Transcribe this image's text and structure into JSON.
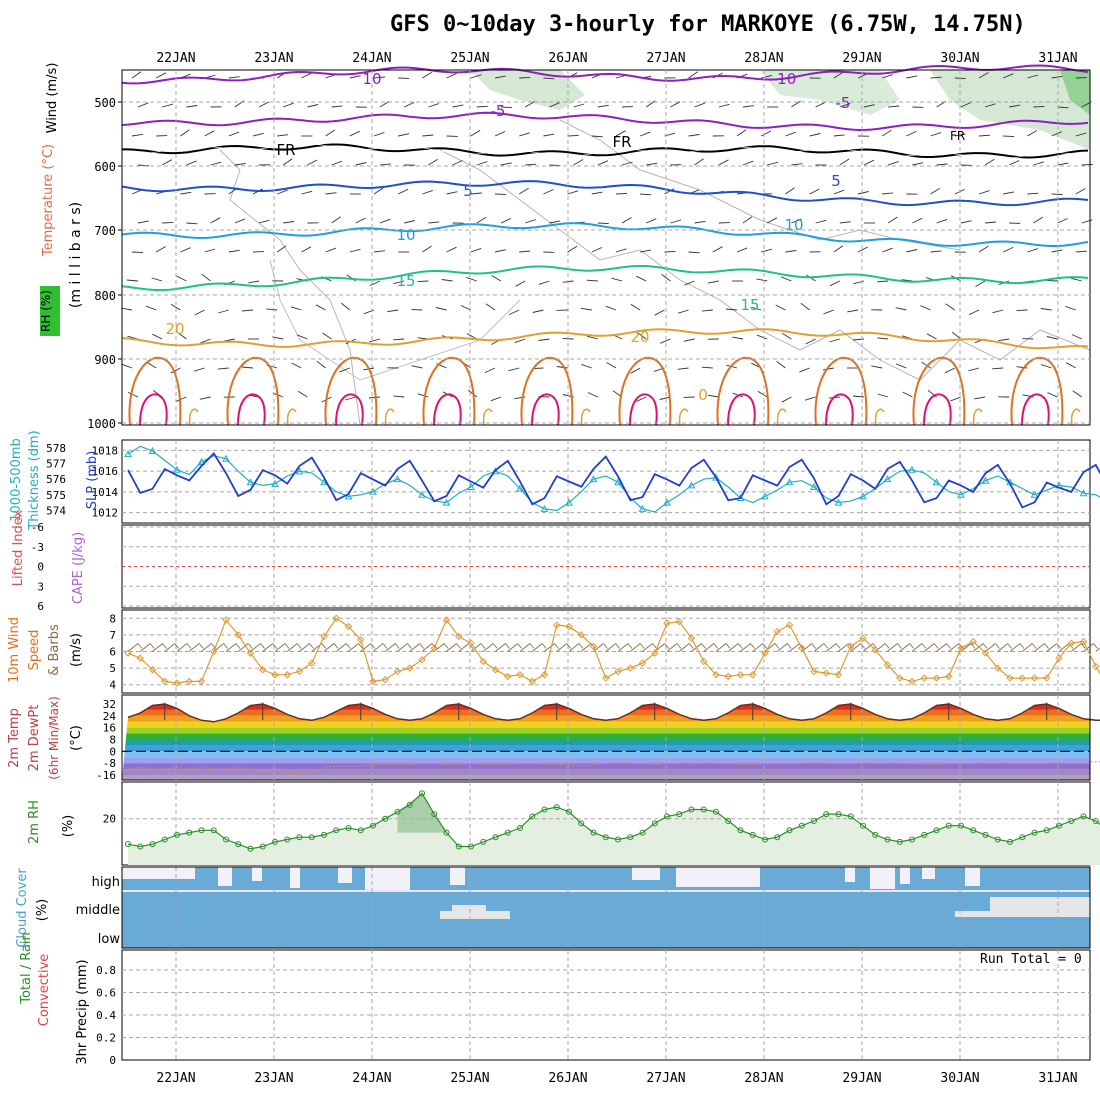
{
  "title": "GFS 0~10day 3-hourly for MARKOYE (6.75W, 14.75N)",
  "days": [
    "22JAN",
    "23JAN",
    "24JAN",
    "25JAN",
    "26JAN",
    "27JAN",
    "28JAN",
    "29JAN",
    "30JAN",
    "31JAN"
  ],
  "colors": {
    "grid": "#a8a8a8",
    "temp_cold": "#8f1fbf",
    "temp_fr": "#000000",
    "temp_5": "#1f4fcf",
    "temp_10": "#1f9fdf",
    "temp_15": "#1fbf8f",
    "temp_20": "#dfa030",
    "temp_warm": "#df7020",
    "temp_hot": "#df1070",
    "rh_shade": "#cfe6cf",
    "slp": "#1f3fcf",
    "thickness": "#1fafc0",
    "wind10": "#e09a30",
    "cloud": "#6aaad6",
    "rh2m": "#2a8f2a"
  },
  "panels": {
    "upper": {
      "ylabels": [
        "Wind (m/s)",
        "Temperature (°C)",
        "RH (%)",
        "(m i l l i b a r s)"
      ],
      "ticks": [
        "500",
        "600",
        "700",
        "800",
        "900",
        "1000"
      ],
      "contour_labels": [
        "10",
        "-5",
        "FR",
        "5",
        "10",
        "15",
        "20",
        "-10",
        "-5",
        "FR",
        "5",
        "10",
        "15",
        "20",
        "0"
      ]
    },
    "slp": {
      "ylabels": [
        "SLP (mb)",
        "1000-500mb",
        "Thickness (dm)"
      ],
      "slp_ticks": [
        "1018",
        "1016",
        "1014",
        "1012"
      ],
      "thk_ticks": [
        "578",
        "577",
        "576",
        "575",
        "574"
      ]
    },
    "li": {
      "ylabels": [
        "Lifted Index",
        "CAPE (J/kg)"
      ],
      "ticks": [
        "-6",
        "-3",
        "0",
        "3",
        "6"
      ]
    },
    "wind10": {
      "ylabels": [
        "10m Wind",
        "Speed",
        "& Barbs",
        "(m/s)"
      ],
      "ticks": [
        "8",
        "7",
        "6",
        "5",
        "4"
      ]
    },
    "temp2m": {
      "ylabels": [
        "2m Temp",
        "2m DewPt",
        "(6hr Min/Max)",
        "(°C)"
      ],
      "ticks": [
        "32",
        "24",
        "16",
        "8",
        "0",
        "-8",
        "-16"
      ]
    },
    "rh2m": {
      "ylabels": [
        "2m RH",
        "(%)"
      ],
      "ticks": [
        "20"
      ]
    },
    "cloud": {
      "ylabels": [
        "Cloud Cover",
        "(%)"
      ],
      "levels": [
        "high",
        "middle",
        "low"
      ]
    },
    "precip": {
      "ylabels": [
        "Total / Rain",
        "Convective",
        "3hr Precip (mm)"
      ],
      "ticks": [
        "0.8",
        "0.6",
        "0.4",
        "0.2",
        "0"
      ],
      "run_total": "Run Total = 0"
    }
  },
  "chart_data": [
    {
      "type": "line",
      "title": "SLP (mb)",
      "x_unit": "3-hourly steps from 21JAN 12Z",
      "series": [
        {
          "name": "SLP (mb)",
          "values": [
            1016.1,
            1013.9,
            1014.3,
            1016.2,
            1015.6,
            1015.1,
            1016.5,
            1017.7,
            1015.8,
            1013.6,
            1014.2,
            1016.1,
            1015.6,
            1014.8,
            1016.5,
            1017.3,
            1015.4,
            1013.2,
            1013.8,
            1015.8,
            1015.2,
            1014.6,
            1016.2,
            1017.0,
            1015.1,
            1013.1,
            1013.6,
            1015.6,
            1015.0,
            1014.4,
            1016.1,
            1017.0,
            1015.0,
            1012.8,
            1013.4,
            1015.5,
            1015.0,
            1014.5,
            1016.2,
            1017.4,
            1015.5,
            1013.2,
            1013.5,
            1015.7,
            1015.2,
            1014.6,
            1016.3,
            1017.1,
            1015.4,
            1013.2,
            1013.4,
            1015.6,
            1015.1,
            1014.6,
            1016.4,
            1017.1,
            1015.3,
            1012.8,
            1013.6,
            1015.7,
            1015.1,
            1014.3,
            1016.2,
            1016.9,
            1015.1,
            1013.0,
            1013.4,
            1015.1,
            1014.6,
            1014.0,
            1015.8,
            1016.6,
            1014.8,
            1012.5,
            1013.0,
            1014.9,
            1014.4,
            1014.0,
            1015.9,
            1016.6,
            1014.4,
            1012.2,
            1013.0
          ]
        },
        {
          "name": "1000-500mb Thickness (dm)",
          "values": [
            577.6,
            578.1,
            577.8,
            577.2,
            576.6,
            576.3,
            577.1,
            577.5,
            577.3,
            576.5,
            575.8,
            575.6,
            575.7,
            576.2,
            576.5,
            576.4,
            575.8,
            575.2,
            574.9,
            575.0,
            575.2,
            575.7,
            576.0,
            575.6,
            575.0,
            574.6,
            574.5,
            575.1,
            575.5,
            576.2,
            576.5,
            576.2,
            575.4,
            574.5,
            574.1,
            574.0,
            574.5,
            575.2,
            576.0,
            576.2,
            575.8,
            574.8,
            574.1,
            573.9,
            574.5,
            575.0,
            575.6,
            576.0,
            576.1,
            575.5,
            574.8,
            574.5,
            574.9,
            575.3,
            575.8,
            575.9,
            575.5,
            574.8,
            574.5,
            574.6,
            574.9,
            575.4,
            576.0,
            576.5,
            576.6,
            576.4,
            575.8,
            575.2,
            575.0,
            575.4,
            575.9,
            576.2,
            575.8,
            575.4,
            575.0,
            575.3,
            575.6,
            575.5,
            575.1,
            575.0,
            574.6,
            574.3,
            574.4
          ]
        }
      ],
      "ylim_slp": [
        1011,
        1019
      ],
      "ylim_thickness": [
        573.2,
        578.5
      ]
    },
    {
      "type": "line",
      "title": "10m Wind Speed (m/s)",
      "values": [
        5.9,
        5.6,
        4.9,
        4.2,
        4.1,
        4.2,
        4.2,
        6.0,
        7.9,
        7.0,
        5.9,
        4.9,
        4.6,
        4.6,
        4.8,
        5.3,
        6.9,
        8.0,
        7.5,
        6.7,
        4.2,
        4.3,
        4.8,
        5.0,
        5.5,
        6.2,
        7.9,
        6.9,
        6.5,
        5.4,
        4.9,
        4.5,
        4.6,
        4.2,
        4.6,
        7.6,
        7.5,
        7.0,
        6.3,
        4.4,
        4.8,
        5.0,
        5.3,
        5.9,
        7.7,
        7.8,
        6.8,
        5.4,
        4.6,
        4.5,
        4.6,
        4.6,
        5.9,
        7.2,
        7.6,
        6.2,
        4.8,
        4.7,
        4.6,
        6.3,
        6.8,
        6.1,
        5.2,
        4.4,
        4.2,
        4.4,
        4.4,
        4.5,
        6.2,
        6.6,
        5.9,
        5.0,
        4.4,
        4.4,
        4.4,
        4.4,
        5.6,
        6.5,
        6.6,
        5.1,
        3.9,
        4.4,
        4.5
      ],
      "ylim": [
        3.5,
        8.5
      ]
    },
    {
      "type": "area",
      "title": "2m Temp (°C)",
      "series": [
        {
          "name": "2m Temp",
          "values": [
            23,
            26,
            31,
            32,
            29,
            24,
            21,
            20,
            22,
            26,
            31,
            32,
            29,
            25,
            22,
            21,
            23,
            27,
            31,
            32,
            29,
            25,
            22,
            21,
            22,
            26,
            31,
            32,
            29,
            25,
            22,
            21,
            22,
            26,
            31,
            32,
            29,
            25,
            22,
            21,
            22,
            26,
            31,
            32,
            29,
            25,
            22,
            21,
            22,
            26,
            31,
            32,
            29,
            25,
            22,
            21,
            22,
            26,
            31,
            32,
            29,
            25,
            22,
            21,
            22,
            26,
            31,
            32,
            29,
            25,
            22,
            21,
            22,
            26,
            31,
            32,
            29,
            25,
            22,
            21,
            21,
            20,
            20
          ]
        },
        {
          "name": "2m DewPt",
          "values": [
            -12,
            -11,
            -12,
            -12,
            -11,
            -12,
            -11,
            -12,
            -12,
            -11,
            -12,
            -13,
            -12,
            -15,
            -16,
            -14,
            -11,
            -10,
            -10,
            -10,
            -9,
            -9,
            -9,
            -9,
            -8,
            -8,
            -9,
            -9,
            -8,
            -9,
            -9,
            -9,
            -8,
            -8,
            -9,
            -9,
            -9,
            -10,
            -9,
            -8,
            -7,
            -8,
            -8,
            -9,
            -8,
            -8,
            -7,
            -7,
            -8,
            -8,
            -9,
            -9,
            -8,
            -8,
            -8,
            -8,
            -7,
            -8,
            -8,
            -8,
            -8,
            -7,
            -7,
            -8,
            -8,
            -9,
            -9,
            -8,
            -8,
            -8,
            -7,
            -7,
            -8,
            -8,
            -8,
            -8,
            -7,
            -7,
            -7,
            -7,
            -7,
            -8,
            -8
          ]
        }
      ],
      "ylim": [
        -20,
        36
      ]
    },
    {
      "type": "line",
      "title": "2m RH (%)",
      "values": [
        9,
        8,
        9,
        11,
        13,
        14,
        15,
        15,
        11,
        9,
        7,
        8,
        10,
        11,
        12,
        12,
        13,
        15,
        16,
        15,
        17,
        20,
        23,
        26,
        31,
        22,
        14,
        8,
        8,
        10,
        12,
        14,
        16,
        21,
        24,
        25,
        23,
        18,
        14,
        12,
        11,
        12,
        14,
        18,
        21,
        22,
        24,
        24,
        23,
        19,
        15,
        13,
        11,
        12,
        15,
        17,
        19,
        22,
        22,
        21,
        17,
        13,
        11,
        10,
        11,
        13,
        15,
        17,
        17,
        15,
        13,
        11,
        10,
        12,
        14,
        15,
        17,
        19,
        21,
        19,
        15,
        12,
        10
      ],
      "ylim": [
        0,
        35
      ]
    },
    {
      "type": "bar",
      "title": "3hr Precip (mm)",
      "values": [],
      "ylim": [
        0,
        1
      ]
    }
  ]
}
